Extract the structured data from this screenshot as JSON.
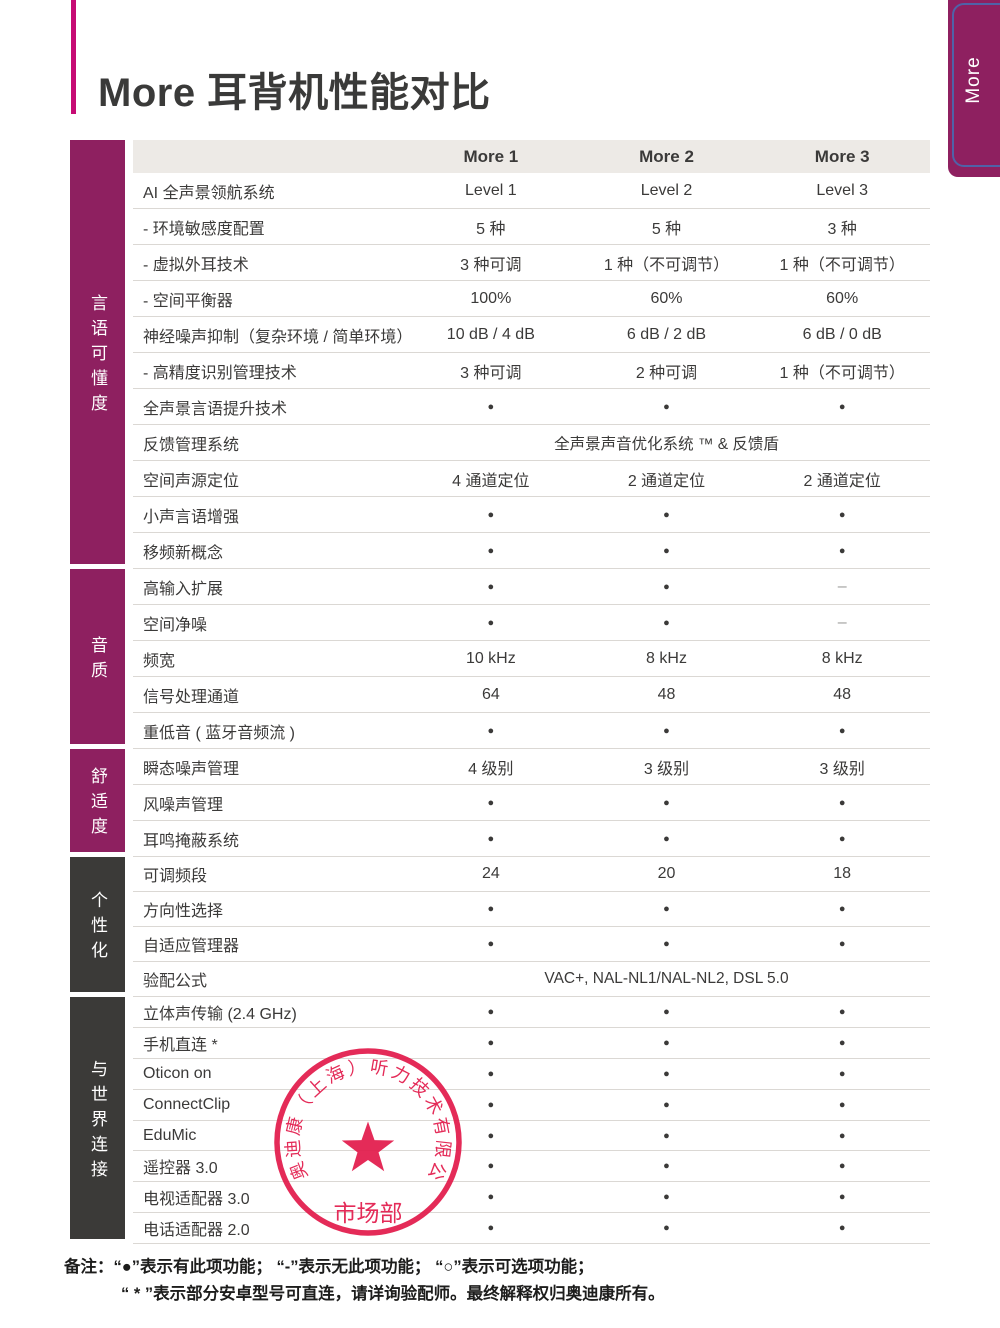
{
  "page": {
    "title": "More 耳背机性能对比",
    "side_tab": "More"
  },
  "table": {
    "columns": [
      "More 1",
      "More 2",
      "More 3"
    ],
    "sections": [
      {
        "category": "言语可懂度",
        "theme": "magenta",
        "rows": [
          {
            "label": "AI 全声景领航系统",
            "values": [
              "Level 1",
              "Level 2",
              "Level 3"
            ]
          },
          {
            "label": "- 环境敏感度配置",
            "values": [
              "5 种",
              "5 种",
              "3 种"
            ]
          },
          {
            "label": "- 虚拟外耳技术",
            "values": [
              "3 种可调",
              "1 种（不可调节）",
              "1 种（不可调节）"
            ]
          },
          {
            "label": "- 空间平衡器",
            "values": [
              "100%",
              "60%",
              "60%"
            ]
          },
          {
            "label": "神经噪声抑制（复杂环境 / 简单环境）",
            "values": [
              "10 dB / 4 dB",
              "6 dB / 2 dB",
              "6 dB / 0 dB"
            ]
          },
          {
            "label": "- 高精度识别管理技术",
            "values": [
              "3 种可调",
              "2 种可调",
              "1 种（不可调节）"
            ]
          },
          {
            "label": "全声景言语提升技术",
            "values": [
              "●",
              "●",
              "●"
            ]
          },
          {
            "label": "反馈管理系统",
            "span": "全声景声音优化系统 ™ & 反馈盾"
          },
          {
            "label": "空间声源定位",
            "values": [
              "4 通道定位",
              "2 通道定位",
              "2 通道定位"
            ]
          },
          {
            "label": "小声言语增强",
            "values": [
              "●",
              "●",
              "●"
            ]
          },
          {
            "label": "移频新概念",
            "values": [
              "●",
              "●",
              "●"
            ]
          }
        ]
      },
      {
        "category": "音质",
        "theme": "magenta",
        "rows": [
          {
            "label": "高输入扩展",
            "values": [
              "●",
              "●",
              "–"
            ]
          },
          {
            "label": "空间净噪",
            "values": [
              "●",
              "●",
              "–"
            ]
          },
          {
            "label": "频宽",
            "values": [
              "10 kHz",
              "8 kHz",
              "8 kHz"
            ]
          },
          {
            "label": "信号处理通道",
            "values": [
              "64",
              "48",
              "48"
            ]
          },
          {
            "label": "重低音 ( 蓝牙音频流 )",
            "values": [
              "●",
              "●",
              "●"
            ]
          }
        ]
      },
      {
        "category": "舒适度",
        "theme": "magenta",
        "rows": [
          {
            "label": "瞬态噪声管理",
            "values": [
              "4 级别",
              "3 级别",
              "3 级别"
            ]
          },
          {
            "label": "风噪声管理",
            "values": [
              "●",
              "●",
              "●"
            ]
          },
          {
            "label": "耳鸣掩蔽系统",
            "values": [
              "●",
              "●",
              "●"
            ]
          }
        ]
      },
      {
        "category": "个性化",
        "theme": "dark",
        "rows": [
          {
            "label": "可调频段",
            "values": [
              "24",
              "20",
              "18"
            ]
          },
          {
            "label": "方向性选择",
            "values": [
              "●",
              "●",
              "●"
            ]
          },
          {
            "label": "自适应管理器",
            "values": [
              "●",
              "●",
              "●"
            ]
          },
          {
            "label": "验配公式",
            "span": "VAC+, NAL-NL1/NAL-NL2, DSL 5.0"
          }
        ]
      },
      {
        "category": "与世界连接",
        "theme": "dark",
        "compact": true,
        "rows": [
          {
            "label": "立体声传输 (2.4 GHz)",
            "values": [
              "●",
              "●",
              "●"
            ]
          },
          {
            "label": "手机直连 *",
            "values": [
              "●",
              "●",
              "●"
            ]
          },
          {
            "label": "Oticon on",
            "values": [
              "●",
              "●",
              "●"
            ]
          },
          {
            "label": "ConnectClip",
            "values": [
              "●",
              "●",
              "●"
            ]
          },
          {
            "label": "EduMic",
            "values": [
              "●",
              "●",
              "●"
            ]
          },
          {
            "label": "遥控器 3.0",
            "values": [
              "●",
              "●",
              "●"
            ]
          },
          {
            "label": "电视适配器 3.0",
            "values": [
              "●",
              "●",
              "●"
            ]
          },
          {
            "label": "电话适配器 2.0",
            "values": [
              "●",
              "●",
              "●"
            ]
          }
        ]
      }
    ]
  },
  "stamp": {
    "arc_text": "奥迪康（上海）听力技术有限公司",
    "dept": "市场部",
    "star_icon": "star-icon",
    "color": "#e21c4c"
  },
  "notes": {
    "prefix": "备注：",
    "line1": "“●”表示有此项功能； “-”表示无此项功能； “○”表示可选项功能；",
    "line2": "“ * ”表示部分安卓型号可直连，请详询验配师。最终解释权归奥迪康所有。"
  },
  "colors": {
    "accent_pink": "#c60c74",
    "category_magenta": "#8e2060",
    "category_dark": "#3b3a38",
    "header_bg": "#edeae6",
    "row_line": "#dbd8d4",
    "tab_blue_line": "#4f62a8",
    "stamp_red": "#e21c4c"
  }
}
